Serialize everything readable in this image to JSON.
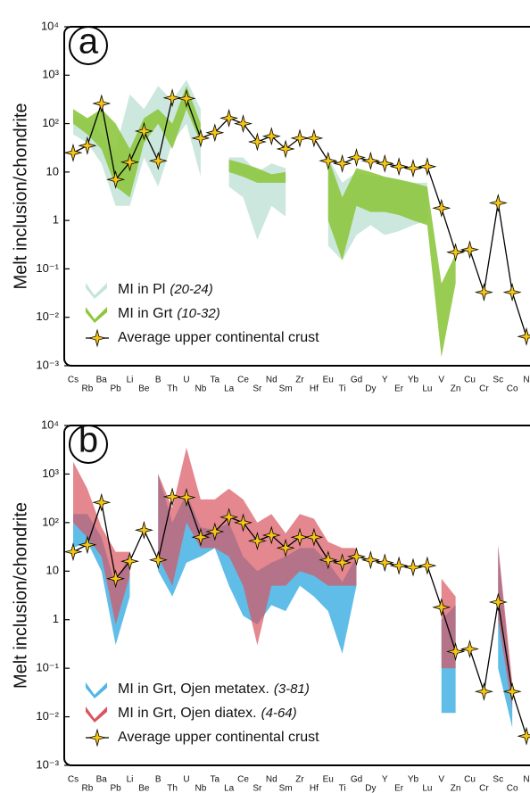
{
  "chart_data": [
    {
      "type": "line",
      "panel_label": "a",
      "ylabel": "Melt inclusion/chondrite",
      "log_y": true,
      "ylim": [
        0.001,
        10000
      ],
      "yticks": [
        {
          "value": 0.001,
          "label": "10⁻³"
        },
        {
          "value": 0.01,
          "label": "10⁻²"
        },
        {
          "value": 0.1,
          "label": "10⁻¹"
        },
        1,
        10,
        {
          "value": 100,
          "label": "10²"
        },
        {
          "value": 1000,
          "label": "10³"
        },
        {
          "value": 10000,
          "label": "10⁴"
        }
      ],
      "categories": [
        "Cs",
        "Rb",
        "Ba",
        "Pb",
        "Li",
        "Be",
        "B",
        "Th",
        "U",
        "Nb",
        "Ta",
        "La",
        "Ce",
        "Sr",
        "Nd",
        "Sm",
        "Zr",
        "Hf",
        "Eu",
        "Ti",
        "Gd",
        "Dy",
        "Y",
        "Er",
        "Yb",
        "Lu",
        "V",
        "Zn",
        "Cu",
        "Cr",
        "Sc",
        "Co",
        "N"
      ],
      "series": [
        {
          "type": "band",
          "name": "MI in Pl",
          "note": "(20-24)",
          "color": "#c6e4d9",
          "low": [
            60,
            40,
            15,
            2,
            2,
            20,
            5,
            40,
            100,
            8,
            null,
            5,
            3,
            0.4,
            2,
            1.2,
            null,
            null,
            0.3,
            0.15,
            0.5,
            0.8,
            0.5,
            0.6,
            0.8,
            1,
            null,
            null,
            null,
            null,
            null,
            null,
            null
          ],
          "high": [
            150,
            120,
            60,
            30,
            400,
            200,
            600,
            300,
            800,
            200,
            null,
            20,
            20,
            10,
            15,
            12,
            null,
            null,
            20,
            6,
            10,
            8,
            8,
            7,
            6,
            6,
            null,
            null,
            null,
            null,
            null,
            null,
            null
          ]
        },
        {
          "type": "band",
          "name": "MI in Grt",
          "note": "(10-32)",
          "color": "#8dc63f",
          "low": [
            100,
            60,
            30,
            5,
            3,
            40,
            100,
            30,
            200,
            40,
            null,
            10,
            8,
            6,
            6,
            6,
            null,
            null,
            1,
            0.15,
            2,
            1.5,
            1.5,
            1.3,
            1,
            0.8,
            0.0015,
            0.05,
            null,
            null,
            null,
            null,
            null
          ],
          "high": [
            200,
            130,
            200,
            100,
            30,
            130,
            200,
            100,
            600,
            100,
            null,
            18,
            15,
            12,
            9,
            10,
            null,
            null,
            20,
            3,
            12,
            10,
            8,
            7,
            6,
            5,
            0.05,
            0.2,
            null,
            null,
            null,
            null,
            null
          ]
        },
        {
          "type": "line",
          "name": "Average upper continental crust",
          "color": "#f5c518",
          "values": [
            25,
            35,
            260,
            7,
            16,
            70,
            17,
            340,
            330,
            50,
            65,
            130,
            100,
            42,
            55,
            30,
            50,
            50,
            17,
            15,
            20,
            17,
            15,
            13,
            12,
            13,
            1.8,
            0.22,
            0.25,
            0.033,
            2.3,
            0.033,
            0.004
          ]
        }
      ]
    },
    {
      "type": "line",
      "panel_label": "b",
      "ylabel": "Melt inclusion/chondrite",
      "log_y": true,
      "ylim": [
        0.001,
        10000
      ],
      "yticks": [
        {
          "value": 0.001,
          "label": "10⁻³"
        },
        {
          "value": 0.01,
          "label": "10⁻²"
        },
        {
          "value": 0.1,
          "label": "10⁻¹"
        },
        1,
        10,
        {
          "value": 100,
          "label": "10²"
        },
        {
          "value": 1000,
          "label": "10³"
        },
        {
          "value": 10000,
          "label": "10⁴"
        }
      ],
      "categories": [
        "Cs",
        "Rb",
        "Ba",
        "Pb",
        "Li",
        "Be",
        "B",
        "Th",
        "U",
        "Nb",
        "Ta",
        "La",
        "Ce",
        "Sr",
        "Nd",
        "Sm",
        "Zr",
        "Hf",
        "Eu",
        "Ti",
        "Gd",
        "Dy",
        "Y",
        "Er",
        "Yb",
        "Lu",
        "V",
        "Zn",
        "Cu",
        "Cr",
        "Sc",
        "Co",
        "N"
      ],
      "series": [
        {
          "type": "band",
          "name": "MI in Grt, Ojen metatex.",
          "note": "(3-81)",
          "color": "#4fb6e6",
          "low": [
            30,
            40,
            10,
            0.3,
            3,
            null,
            10,
            3,
            15,
            20,
            30,
            5,
            1.2,
            0.8,
            2,
            1.5,
            5,
            3,
            1.5,
            0.2,
            5,
            null,
            null,
            null,
            null,
            null,
            0.012,
            0.012,
            null,
            null,
            0.1,
            0.006,
            null
          ],
          "high": [
            150,
            150,
            50,
            5,
            25,
            null,
            1000,
            100,
            400,
            80,
            70,
            100,
            20,
            10,
            15,
            20,
            30,
            30,
            15,
            6,
            20,
            null,
            null,
            null,
            null,
            null,
            1,
            2,
            null,
            null,
            30,
            0.03,
            null
          ]
        },
        {
          "type": "band",
          "name": "MI in Grt, Ojen diatex.",
          "note": "(4-64)",
          "color": "#d9545f",
          "low": [
            100,
            50,
            20,
            0.8,
            8,
            null,
            20,
            5,
            100,
            30,
            30,
            20,
            5,
            0.3,
            5,
            5,
            10,
            8,
            5,
            5,
            5,
            null,
            null,
            null,
            null,
            null,
            0.1,
            0.1,
            null,
            null,
            1,
            0.015,
            null
          ],
          "high": [
            1800,
            500,
            80,
            25,
            25,
            null,
            1000,
            200,
            3500,
            300,
            300,
            500,
            300,
            100,
            150,
            60,
            150,
            120,
            40,
            30,
            30,
            null,
            null,
            null,
            null,
            null,
            7,
            3,
            null,
            null,
            35,
            0.05,
            null
          ]
        },
        {
          "type": "line",
          "name": "Average upper continental crust",
          "color": "#f5c518",
          "values": [
            25,
            35,
            260,
            7,
            16,
            70,
            17,
            340,
            330,
            50,
            65,
            130,
            100,
            42,
            55,
            30,
            50,
            50,
            17,
            15,
            20,
            17,
            15,
            13,
            12,
            13,
            1.8,
            0.22,
            0.25,
            0.033,
            2.3,
            0.033,
            0.004
          ]
        }
      ]
    }
  ]
}
